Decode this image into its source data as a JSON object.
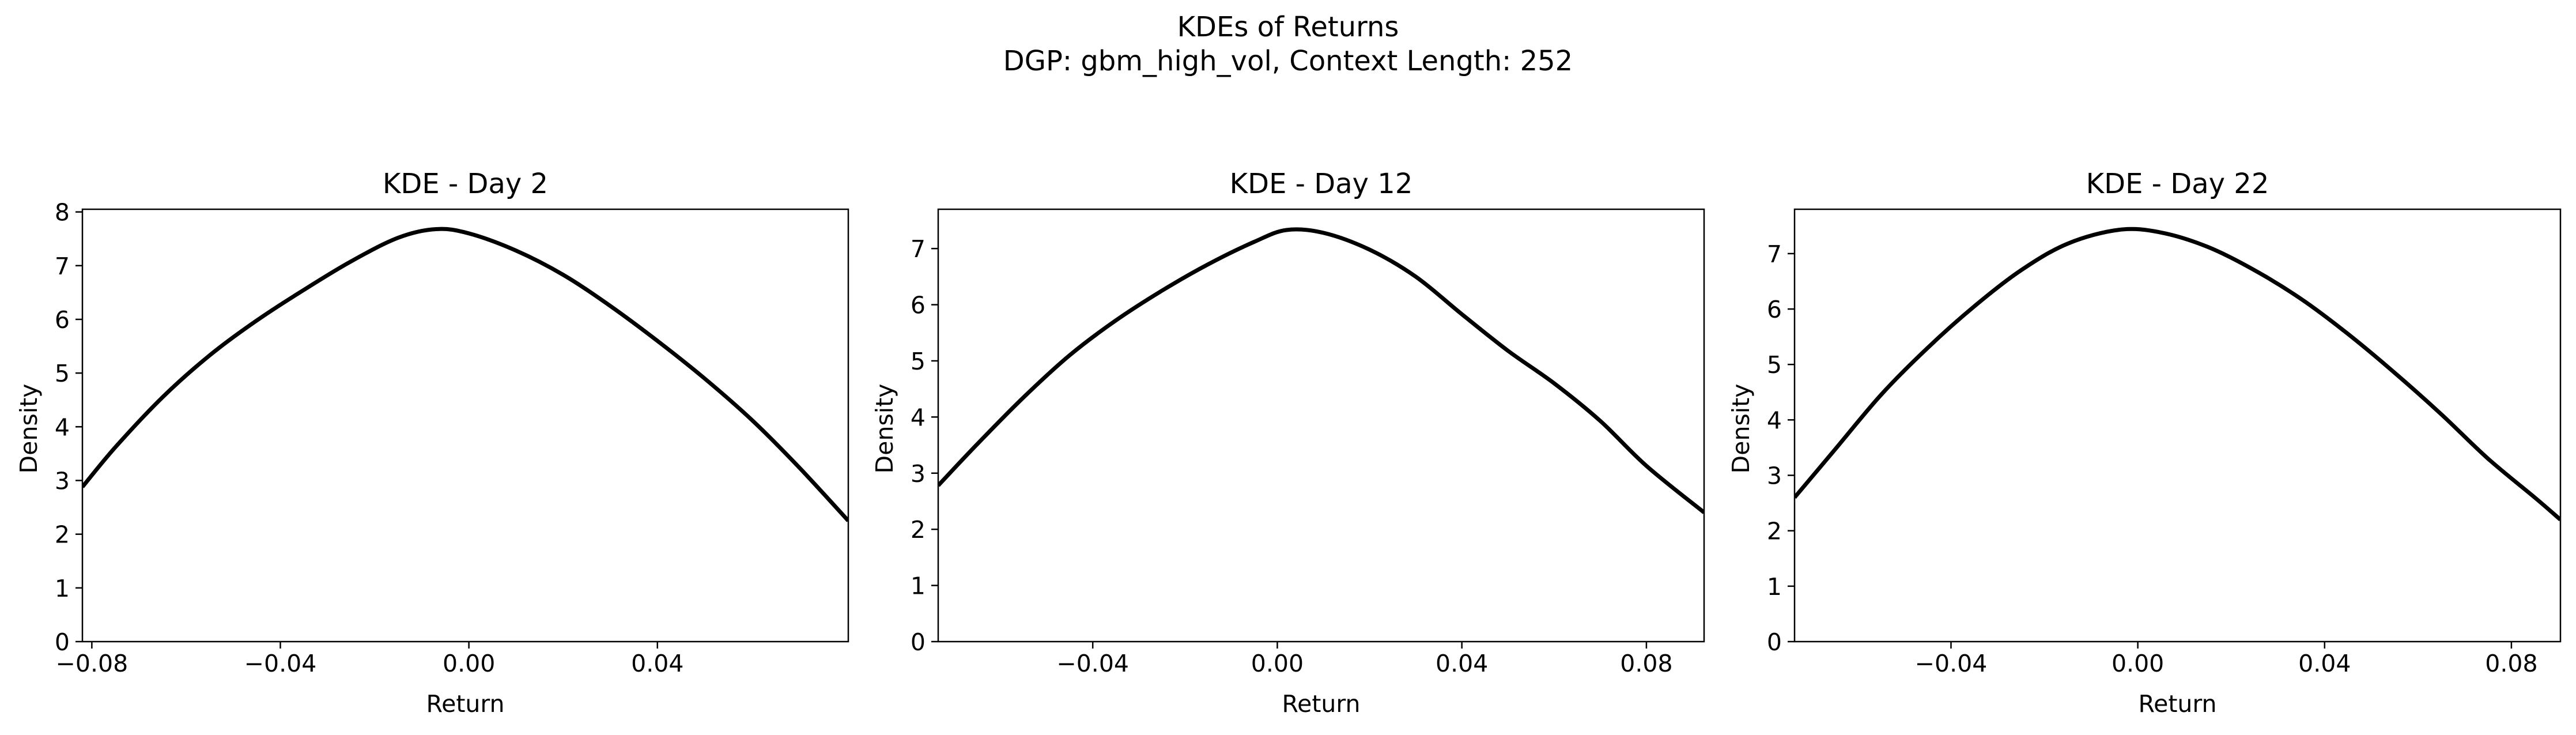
{
  "figure": {
    "suptitle_line1": "KDEs of Returns",
    "suptitle_line2": "DGP: gbm_high_vol, Context Length: 252"
  },
  "colors": {
    "curve": "#000000",
    "axes": "#000000",
    "background": "#ffffff"
  },
  "chart_data": [
    {
      "type": "line",
      "title": "KDE - Day 2",
      "xlabel": "Return",
      "ylabel": "Density",
      "xlim": [
        -0.082,
        0.0805
      ],
      "ylim": [
        0,
        8.05
      ],
      "xticks": [
        -0.08,
        -0.04,
        0.0,
        0.04
      ],
      "xtick_labels": [
        "−0.08",
        "−0.04",
        "0.00",
        "0.04"
      ],
      "yticks": [
        0,
        1,
        2,
        3,
        4,
        5,
        6,
        7,
        8
      ],
      "ytick_labels": [
        "0",
        "1",
        "2",
        "3",
        "4",
        "5",
        "6",
        "7",
        "8"
      ],
      "grid": false,
      "series": [
        {
          "x": [
            -0.082,
            -0.075,
            -0.065,
            -0.055,
            -0.045,
            -0.035,
            -0.025,
            -0.015,
            -0.007,
            0.0,
            0.01,
            0.02,
            0.03,
            0.04,
            0.05,
            0.06,
            0.07,
            0.0805
          ],
          "y": [
            2.88,
            3.62,
            4.55,
            5.33,
            5.98,
            6.55,
            7.08,
            7.52,
            7.68,
            7.6,
            7.28,
            6.83,
            6.25,
            5.6,
            4.9,
            4.13,
            3.25,
            2.25
          ]
        }
      ]
    },
    {
      "type": "line",
      "title": "KDE - Day 12",
      "xlabel": "Return",
      "ylabel": "Density",
      "xlim": [
        -0.0735,
        0.0925
      ],
      "ylim": [
        0,
        7.7
      ],
      "xticks": [
        -0.04,
        0.0,
        0.04,
        0.08
      ],
      "xtick_labels": [
        "−0.04",
        "0.00",
        "0.04",
        "0.08"
      ],
      "yticks": [
        0,
        1,
        2,
        3,
        4,
        5,
        6,
        7
      ],
      "ytick_labels": [
        "0",
        "1",
        "2",
        "3",
        "4",
        "5",
        "6",
        "7"
      ],
      "grid": false,
      "series": [
        {
          "x": [
            -0.0735,
            -0.065,
            -0.055,
            -0.045,
            -0.035,
            -0.025,
            -0.015,
            -0.005,
            0.002,
            0.01,
            0.02,
            0.03,
            0.04,
            0.05,
            0.06,
            0.07,
            0.08,
            0.0925
          ],
          "y": [
            2.78,
            3.52,
            4.35,
            5.1,
            5.72,
            6.25,
            6.72,
            7.12,
            7.33,
            7.28,
            6.98,
            6.5,
            5.83,
            5.18,
            4.6,
            3.93,
            3.13,
            2.3
          ]
        }
      ]
    },
    {
      "type": "line",
      "title": "KDE - Day 22",
      "xlabel": "Return",
      "ylabel": "Density",
      "xlim": [
        -0.0735,
        0.0905
      ],
      "ylim": [
        0,
        7.8
      ],
      "xticks": [
        -0.04,
        0.0,
        0.04,
        0.08
      ],
      "xtick_labels": [
        "−0.04",
        "0.00",
        "0.04",
        "0.08"
      ],
      "yticks": [
        0,
        1,
        2,
        3,
        4,
        5,
        6,
        7
      ],
      "ytick_labels": [
        "0",
        "1",
        "2",
        "3",
        "4",
        "5",
        "6",
        "7"
      ],
      "grid": false,
      "series": [
        {
          "x": [
            -0.0735,
            -0.065,
            -0.055,
            -0.045,
            -0.035,
            -0.025,
            -0.015,
            -0.004,
            0.005,
            0.015,
            0.025,
            0.035,
            0.045,
            0.055,
            0.065,
            0.075,
            0.085,
            0.0905
          ],
          "y": [
            2.6,
            3.45,
            4.45,
            5.3,
            6.05,
            6.7,
            7.18,
            7.43,
            7.38,
            7.12,
            6.7,
            6.18,
            5.55,
            4.85,
            4.1,
            3.3,
            2.6,
            2.2
          ]
        }
      ]
    }
  ]
}
